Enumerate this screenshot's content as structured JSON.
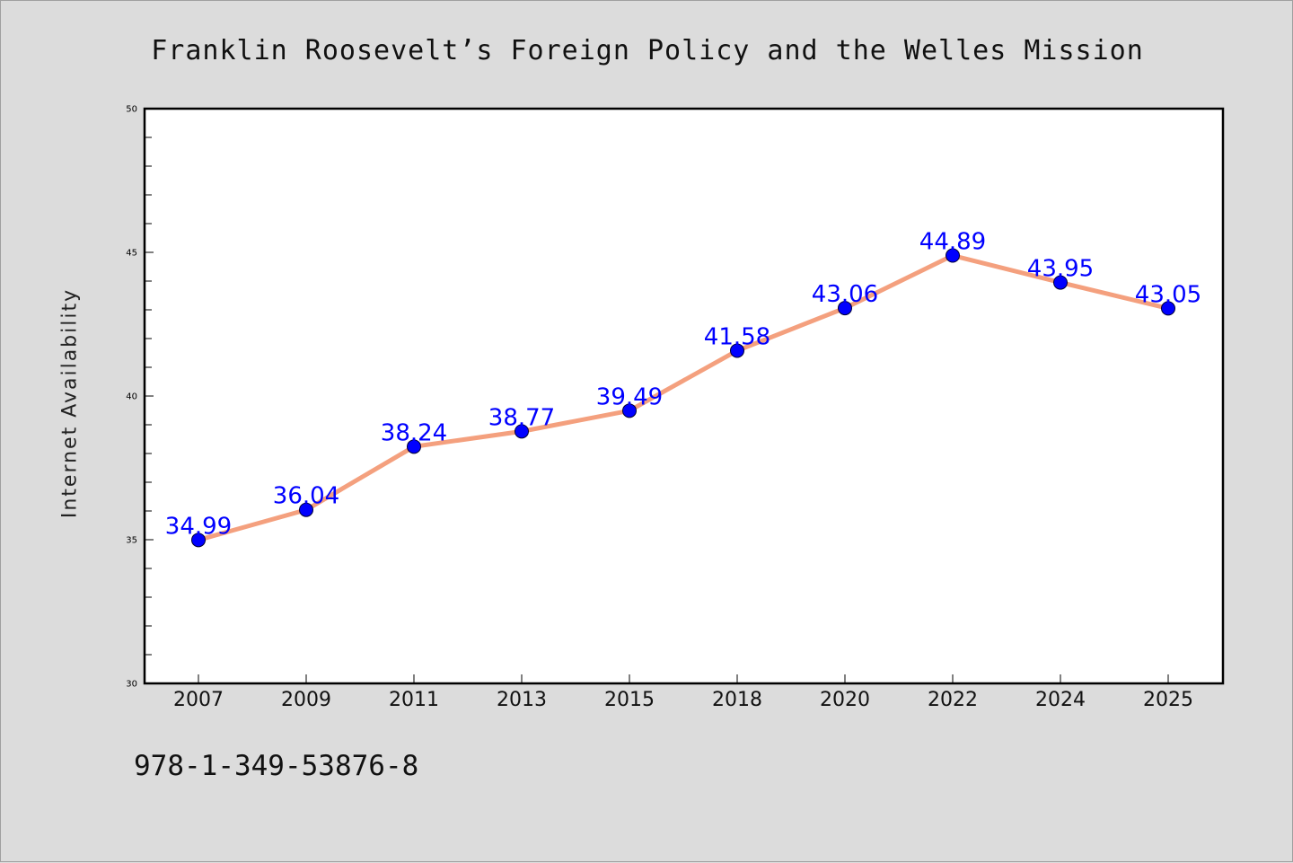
{
  "chart_data": {
    "type": "line",
    "title": "Franklin Roosevelt’s Foreign Policy and the Welles Mission",
    "xlabel": "",
    "ylabel": "Internet Availability",
    "categories": [
      "2007",
      "2009",
      "2011",
      "2013",
      "2015",
      "2018",
      "2020",
      "2022",
      "2024",
      "2025"
    ],
    "series": [
      {
        "values": [
          34.99,
          36.04,
          38.24,
          38.77,
          39.49,
          41.58,
          43.06,
          44.89,
          43.95,
          43.05
        ],
        "data_labels": [
          "34.99",
          "36.04",
          "38.24",
          "38.77",
          "39.49",
          "41.58",
          "43.06",
          "44.89",
          "43.95",
          "43.05"
        ]
      }
    ],
    "ylim": [
      30,
      50
    ],
    "yticks": [
      30,
      35,
      40,
      45,
      50
    ],
    "ytick_labels": [
      "30",
      "35",
      "40",
      "45",
      "50"
    ],
    "grid": false,
    "colors": {
      "line": "#f4a07e",
      "marker": "#0000ff",
      "data_label": "#0000ff"
    }
  },
  "footer": {
    "text": "978-1-349-53876-8"
  }
}
